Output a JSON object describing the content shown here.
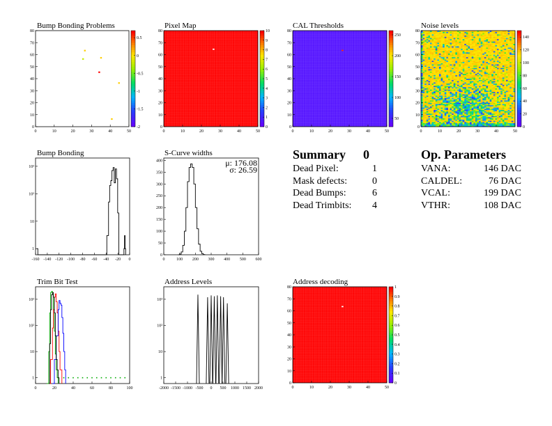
{
  "chart_data": [
    {
      "type": "heatmap",
      "title": "Bump Bonding Problems",
      "x_ticks": [
        "0",
        "10",
        "20",
        "30",
        "40",
        "50"
      ],
      "y_ticks": [
        "0",
        "10",
        "20",
        "30",
        "40",
        "50",
        "60",
        "70",
        "80"
      ],
      "xlim": [
        0,
        52
      ],
      "ylim": [
        0,
        80
      ],
      "z_ticks": [
        "-2",
        "-1.5",
        "-1",
        "-0.5",
        "0",
        "0.5"
      ],
      "zlim": [
        -2,
        0.7
      ],
      "points": [
        {
          "x": 27,
          "y": 63,
          "z": 0.1
        },
        {
          "x": 26,
          "y": 56,
          "z": -0.2
        },
        {
          "x": 36,
          "y": 57,
          "z": 0.1
        },
        {
          "x": 35,
          "y": 45,
          "z": 0.7
        },
        {
          "x": 46,
          "y": 36,
          "z": 0.1
        },
        {
          "x": 42,
          "y": 6,
          "z": 0.1
        }
      ]
    },
    {
      "type": "heatmap",
      "title": "Pixel Map",
      "x_ticks": [
        "0",
        "10",
        "20",
        "30",
        "40",
        "50"
      ],
      "y_ticks": [
        "0",
        "10",
        "20",
        "30",
        "40",
        "50",
        "60",
        "70",
        "80"
      ],
      "xlim": [
        0,
        52
      ],
      "ylim": [
        0,
        80
      ],
      "z_ticks": [
        "0",
        "1",
        "2",
        "3",
        "4",
        "5",
        "6",
        "7",
        "8",
        "9",
        "10"
      ],
      "zlim": [
        0,
        10
      ],
      "fill_value": 10,
      "special": [
        {
          "x": 27,
          "y": 64,
          "z": 0
        }
      ]
    },
    {
      "type": "heatmap",
      "title": "CAL Thresholds",
      "x_ticks": [
        "0",
        "10",
        "20",
        "30",
        "40",
        "50"
      ],
      "y_ticks": [
        "0",
        "10",
        "20",
        "30",
        "40",
        "50",
        "60",
        "70",
        "80"
      ],
      "xlim": [
        0,
        52
      ],
      "ylim": [
        0,
        80
      ],
      "z_ticks": [
        "50",
        "100",
        "150",
        "200",
        "250"
      ],
      "zlim": [
        30,
        260
      ],
      "fill_value": 40,
      "special": [
        {
          "x": 27,
          "y": 63,
          "z": 250
        }
      ]
    },
    {
      "type": "heatmap",
      "title": "Noise levels",
      "x_ticks": [
        "0",
        "10",
        "20",
        "30",
        "40",
        "50"
      ],
      "y_ticks": [
        "0",
        "10",
        "20",
        "30",
        "40",
        "50",
        "60",
        "70",
        "80"
      ],
      "xlim": [
        0,
        52
      ],
      "ylim": [
        0,
        80
      ],
      "z_ticks": [
        "0",
        "20",
        "40",
        "60",
        "80",
        "100",
        "120",
        "140"
      ],
      "zlim": [
        0,
        150
      ],
      "fill_value": 110,
      "hot_center": {
        "x": 25,
        "y": 15
      }
    },
    {
      "type": "line",
      "title": "Bump Bonding",
      "log_y": true,
      "x_ticks": [
        "-160",
        "-140",
        "-120",
        "-100",
        "-80",
        "-60",
        "-40",
        "-20",
        "0"
      ],
      "xlim": [
        -160,
        5
      ],
      "y_ticks": [
        "1",
        "10",
        "10²",
        "10³"
      ],
      "ylim": [
        0.6,
        2000
      ],
      "series": [
        {
          "x": [
            -158,
            -157,
            -156,
            -40,
            -35,
            -32,
            -30,
            -28,
            -26,
            -24,
            -22,
            -20,
            -18,
            -16,
            -14,
            -5,
            -4,
            -3,
            -2
          ],
          "y": [
            1,
            1,
            0.6,
            0.6,
            3,
            50,
            200,
            300,
            700,
            900,
            250,
            800,
            350,
            20,
            0.6,
            1,
            3,
            1,
            0.6
          ]
        }
      ]
    },
    {
      "type": "line",
      "title": "S-Curve widths",
      "x_ticks": [
        "0",
        "100",
        "200",
        "300",
        "400",
        "500",
        "600"
      ],
      "xlim": [
        0,
        600
      ],
      "y_ticks": [
        "0",
        "50",
        "100",
        "150",
        "200",
        "250",
        "300",
        "350",
        "400"
      ],
      "ylim": [
        0,
        410
      ],
      "stats": {
        "mean_label": "μ: 176.08",
        "sigma_label": "σ: 26.59"
      },
      "series": [
        {
          "x": [
            90,
            100,
            110,
            120,
            130,
            140,
            150,
            160,
            170,
            180,
            190,
            200,
            210,
            220,
            230,
            240,
            250,
            260
          ],
          "y": [
            0,
            3,
            12,
            40,
            100,
            200,
            310,
            370,
            385,
            370,
            300,
            200,
            110,
            45,
            15,
            5,
            1,
            0
          ]
        }
      ]
    },
    {
      "type": "line",
      "title": "Trim Bit Test",
      "log_y": true,
      "x_ticks": [
        "0",
        "20",
        "40",
        "60",
        "80",
        "100"
      ],
      "xlim": [
        0,
        100
      ],
      "y_ticks": [
        "1",
        "10",
        "10²",
        "10³"
      ],
      "ylim": [
        0.6,
        3000
      ],
      "series": [
        {
          "color": "#00aa00",
          "x": [
            12,
            14,
            15,
            16,
            17,
            18,
            19,
            20,
            21,
            22,
            23,
            24
          ],
          "y": [
            0.6,
            10,
            300,
            1800,
            2000,
            1500,
            400,
            60,
            8,
            2,
            1,
            0.6
          ]
        },
        {
          "color": "#ff0000",
          "x": [
            14,
            16,
            18,
            19,
            20,
            21,
            22,
            23,
            24,
            25,
            26,
            28
          ],
          "y": [
            0.6,
            5,
            80,
            400,
            1200,
            1600,
            800,
            300,
            60,
            10,
            2,
            0.6
          ]
        },
        {
          "color": "#0000ff",
          "x": [
            18,
            20,
            22,
            24,
            25,
            26,
            27,
            28,
            29,
            30,
            31,
            32
          ],
          "y": [
            0.6,
            5,
            40,
            400,
            900,
            700,
            600,
            200,
            50,
            10,
            2,
            0.6
          ]
        },
        {
          "color": "#000000",
          "x": [
            14,
            15,
            16,
            17,
            18,
            19,
            20,
            21,
            22,
            23,
            24,
            25
          ],
          "y": [
            0.6,
            20,
            400,
            1500,
            1800,
            1200,
            300,
            40,
            5,
            2,
            1,
            0.6
          ]
        }
      ],
      "scatter": {
        "color": "#00aa00",
        "x": [
          30,
          35,
          40,
          45,
          50,
          55,
          60,
          65,
          70,
          75,
          80,
          85,
          90,
          95
        ],
        "y": 1
      }
    },
    {
      "type": "line",
      "title": "Address Levels",
      "log_y": true,
      "x_ticks": [
        "-2000",
        "-1500",
        "-1000",
        "-500",
        "0",
        "500",
        "1000",
        "1500",
        "2000"
      ],
      "xlim": [
        -2000,
        2000
      ],
      "y_ticks": [
        "1",
        "10",
        "10²",
        "10³"
      ],
      "ylim": [
        0.6,
        3000
      ],
      "spikes": [
        {
          "x": -560,
          "y": 1500
        },
        {
          "x": -150,
          "y": 1200
        },
        {
          "x": 0,
          "y": 1400
        },
        {
          "x": 130,
          "y": 1300
        },
        {
          "x": 260,
          "y": 1400
        },
        {
          "x": 400,
          "y": 1300
        },
        {
          "x": 520,
          "y": 1200
        },
        {
          "x": 680,
          "y": 700
        }
      ]
    },
    {
      "type": "heatmap",
      "title": "Address decoding",
      "x_ticks": [
        "0",
        "10",
        "20",
        "30",
        "40",
        "50"
      ],
      "y_ticks": [
        "0",
        "10",
        "20",
        "30",
        "40",
        "50",
        "60",
        "70",
        "80"
      ],
      "xlim": [
        0,
        52
      ],
      "ylim": [
        0,
        80
      ],
      "z_ticks": [
        "0",
        "0.1",
        "0.2",
        "0.3",
        "0.4",
        "0.5",
        "0.6",
        "0.7",
        "0.8",
        "0.9",
        "1"
      ],
      "zlim": [
        0,
        1
      ],
      "fill_value": 1,
      "special": [
        {
          "x": 27,
          "y": 63,
          "z": 0
        }
      ]
    }
  ],
  "summary": {
    "title": "Summary",
    "total": "0",
    "rows": [
      {
        "label": "Dead Pixel:",
        "value": "1"
      },
      {
        "label": "Mask defects:",
        "value": "0"
      },
      {
        "label": "Dead Bumps:",
        "value": "6"
      },
      {
        "label": "Dead Trimbits:",
        "value": "4"
      }
    ]
  },
  "op_parameters": {
    "title": "Op. Parameters",
    "rows": [
      {
        "label": "VANA:",
        "value": "146 DAC"
      },
      {
        "label": "CALDEL:",
        "value": "76 DAC"
      },
      {
        "label": "VCAL:",
        "value": "199 DAC"
      },
      {
        "label": "VTHR:",
        "value": "108 DAC"
      }
    ]
  }
}
